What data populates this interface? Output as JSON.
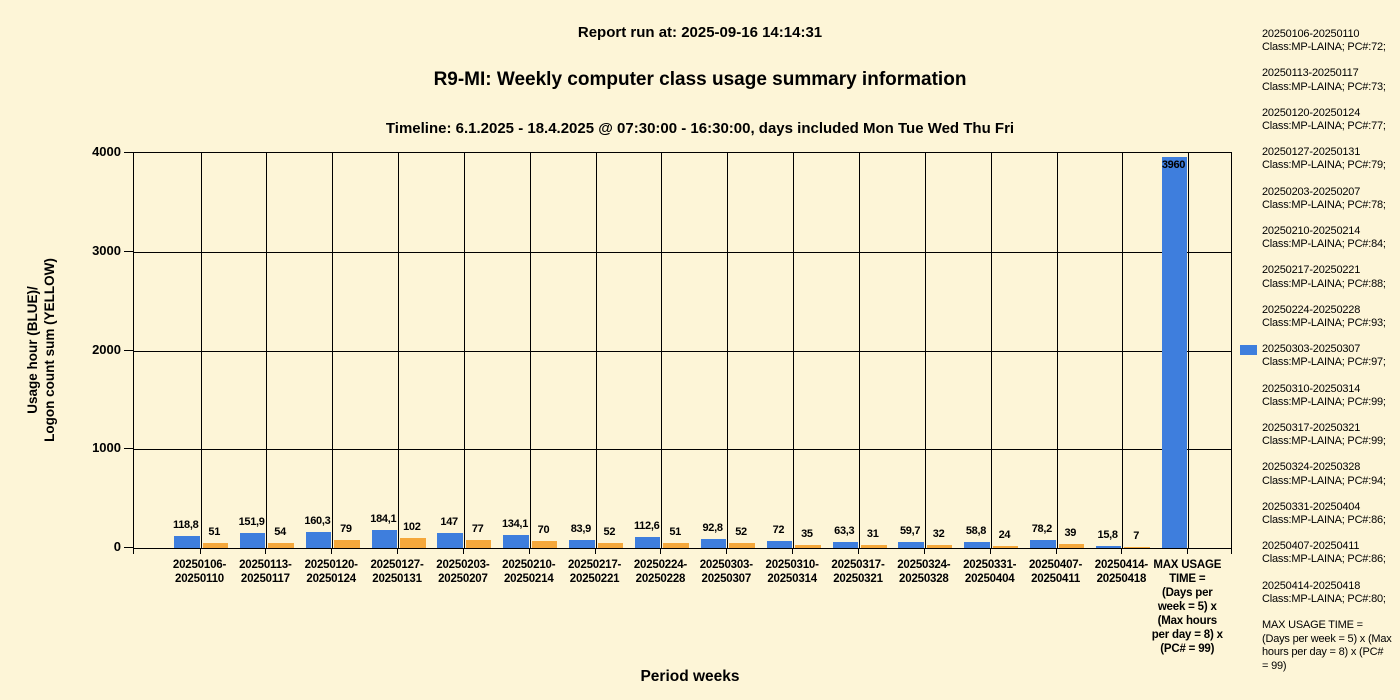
{
  "header": {
    "report_run": "Report run at: 2025-09-16 14:14:31",
    "title": "R9-MI: Weekly computer class usage summary information",
    "timeline": "Timeline:  6.1.2025  - 18.4.2025  @  07:30:00 -  16:30:00, days included Mon Tue Wed Thu Fri"
  },
  "chart_data": {
    "type": "bar",
    "title": "R9-MI: Weekly computer class usage summary information",
    "xlabel": "Period weeks",
    "ylabel": "Usage hour (BLUE)/ Logon count sum (YELLOW)",
    "ylabel_lines": [
      "Usage hour (BLUE)/",
      "Logon count sum (YELLOW)"
    ],
    "ylim": [
      0,
      4000
    ],
    "yticks": [
      0,
      1000,
      2000,
      3000,
      4000
    ],
    "grid": "both",
    "legend_position": "right",
    "categories": [
      "20250106-20250110",
      "20250113-20250117",
      "20250120-20250124",
      "20250127-20250131",
      "20250203-20250207",
      "20250210-20250214",
      "20250217-20250221",
      "20250224-20250228",
      "20250303-20250307",
      "20250310-20250314",
      "20250317-20250321",
      "20250324-20250328",
      "20250331-20250404",
      "20250407-20250411",
      "20250414-20250418",
      "MAX USAGE TIME = (Days per week = 5) x (Max hours per day = 8) x (PC# = 99)"
    ],
    "category_tick_lines": [
      [
        "20250106-",
        "20250110"
      ],
      [
        "20250113-",
        "20250117"
      ],
      [
        "20250120-",
        "20250124"
      ],
      [
        "20250127-",
        "20250131"
      ],
      [
        "20250203-",
        "20250207"
      ],
      [
        "20250210-",
        "20250214"
      ],
      [
        "20250217-",
        "20250221"
      ],
      [
        "20250224-",
        "20250228"
      ],
      [
        "20250303-",
        "20250307"
      ],
      [
        "20250310-",
        "20250314"
      ],
      [
        "20250317-",
        "20250321"
      ],
      [
        "20250324-",
        "20250328"
      ],
      [
        "20250331-",
        "20250404"
      ],
      [
        "20250407-",
        "20250411"
      ],
      [
        "20250414-",
        "20250418"
      ],
      [
        "MAX USAGE",
        "TIME =",
        "(Days per",
        "week = 5) x",
        "(Max hours",
        "per day = 8) x",
        "(PC# = 99)"
      ]
    ],
    "series": [
      {
        "name": "Usage hour",
        "color": "#3E7EDD",
        "values": [
          118.8,
          151.9,
          160.3,
          184.1,
          147,
          134.1,
          83.9,
          112.6,
          92.8,
          72,
          63.3,
          59.7,
          58.8,
          78.2,
          15.8,
          3960
        ],
        "labels": [
          "118,8",
          "151,9",
          "160,3",
          "184,1",
          "147",
          "134,1",
          "83,9",
          "112,6",
          "92,8",
          "72",
          "63,3",
          "59,7",
          "58,8",
          "78,2",
          "15,8",
          "3960"
        ]
      },
      {
        "name": "Logon count sum",
        "color": "#F5A83B",
        "values": [
          51,
          54,
          79,
          102,
          77,
          70,
          52,
          51,
          52,
          35,
          31,
          32,
          24,
          39,
          7,
          null
        ],
        "labels": [
          "51",
          "54",
          "79",
          "102",
          "77",
          "70",
          "52",
          "51",
          "52",
          "35",
          "31",
          "32",
          "24",
          "39",
          "7",
          ""
        ]
      }
    ]
  },
  "legend": {
    "entries": [
      {
        "period": "20250106-20250110",
        "detail": "Class:MP-LAINA; PC#:72;",
        "swatch": false
      },
      {
        "period": "20250113-20250117",
        "detail": "Class:MP-LAINA; PC#:73;",
        "swatch": false
      },
      {
        "period": "20250120-20250124",
        "detail": "Class:MP-LAINA; PC#:77;",
        "swatch": false
      },
      {
        "period": "20250127-20250131",
        "detail": "Class:MP-LAINA; PC#:79;",
        "swatch": false
      },
      {
        "period": "20250203-20250207",
        "detail": "Class:MP-LAINA; PC#:78;",
        "swatch": false
      },
      {
        "period": "20250210-20250214",
        "detail": "Class:MP-LAINA; PC#:84;",
        "swatch": false
      },
      {
        "period": "20250217-20250221",
        "detail": "Class:MP-LAINA; PC#:88;",
        "swatch": false
      },
      {
        "period": "20250224-20250228",
        "detail": "Class:MP-LAINA; PC#:93;",
        "swatch": false
      },
      {
        "period": "20250303-20250307",
        "detail": "Class:MP-LAINA; PC#:97;",
        "swatch": true
      },
      {
        "period": "20250310-20250314",
        "detail": "Class:MP-LAINA; PC#:99;",
        "swatch": false
      },
      {
        "period": "20250317-20250321",
        "detail": "Class:MP-LAINA; PC#:99;",
        "swatch": false
      },
      {
        "period": "20250324-20250328",
        "detail": "Class:MP-LAINA; PC#:94;",
        "swatch": false
      },
      {
        "period": "20250331-20250404",
        "detail": "Class:MP-LAINA; PC#:86;",
        "swatch": false
      },
      {
        "period": "20250407-20250411",
        "detail": "Class:MP-LAINA; PC#:86;",
        "swatch": false
      },
      {
        "period": "20250414-20250418",
        "detail": "Class:MP-LAINA; PC#:80;",
        "swatch": false
      }
    ],
    "max_entry_lines": [
      "MAX USAGE TIME =",
      " (Days per week = 5) x (Max",
      "hours per day = 8) x (PC#",
      "= 99)"
    ]
  },
  "colors": {
    "background": "#FDF5D7",
    "bar_blue": "#3E7EDD",
    "bar_yellow": "#F5A83B",
    "axis": "#000000"
  }
}
